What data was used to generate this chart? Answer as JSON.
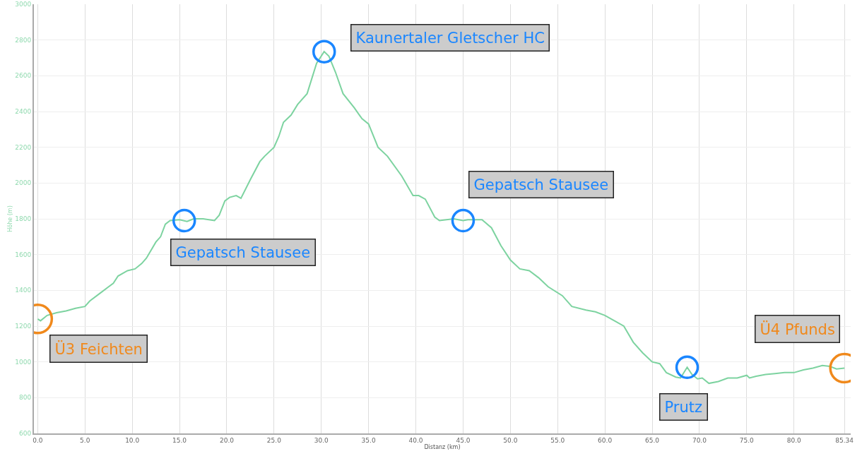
{
  "chart_data": {
    "type": "line",
    "xlabel": "Distanz (km)",
    "ylabel": "Höhe (m)",
    "x": [
      0,
      0.3,
      1,
      2,
      3,
      4,
      5,
      5.5,
      6.5,
      7.5,
      8,
      8.5,
      9.5,
      10.3,
      11,
      11.5,
      12.5,
      13,
      13.5,
      14,
      15,
      15.8,
      16.5,
      17.5,
      18.7,
      19.2,
      19.8,
      20.3,
      21,
      21.5,
      22.5,
      23.5,
      24,
      25,
      25.5,
      26,
      26.8,
      27.5,
      28.5,
      29.5,
      30.3,
      30.8,
      31.5,
      32.3,
      33.5,
      34.3,
      35,
      36,
      37,
      38.5,
      39.7,
      40.3,
      41,
      42,
      42.5,
      44,
      45,
      45.5,
      47,
      48,
      49,
      50,
      51,
      52,
      53,
      54,
      55.5,
      56.5,
      58,
      59,
      60,
      61,
      62,
      63,
      64,
      65,
      65.8,
      66.5,
      67.5,
      68,
      68.7,
      69.2,
      69.8,
      70.3,
      71,
      72,
      73,
      74,
      75,
      75.3,
      76,
      77,
      78,
      79,
      80,
      81,
      82,
      83,
      83.8,
      84.5,
      85.34
    ],
    "series": [
      {
        "color": "#7dd3a0",
        "values": [
          1240,
          1230,
          1260,
          1275,
          1285,
          1300,
          1310,
          1340,
          1380,
          1420,
          1440,
          1480,
          1510,
          1520,
          1550,
          1580,
          1670,
          1700,
          1770,
          1790,
          1795,
          1785,
          1800,
          1800,
          1790,
          1820,
          1900,
          1920,
          1930,
          1915,
          2020,
          2120,
          2150,
          2200,
          2260,
          2340,
          2380,
          2440,
          2500,
          2670,
          2735,
          2710,
          2620,
          2500,
          2420,
          2360,
          2330,
          2200,
          2150,
          2040,
          1930,
          1930,
          1910,
          1810,
          1790,
          1800,
          1790,
          1795,
          1795,
          1750,
          1650,
          1570,
          1520,
          1510,
          1470,
          1420,
          1370,
          1310,
          1290,
          1280,
          1260,
          1230,
          1200,
          1110,
          1050,
          1000,
          990,
          940,
          915,
          910,
          970,
          930,
          905,
          910,
          880,
          890,
          910,
          910,
          925,
          910,
          920,
          930,
          935,
          940,
          940,
          955,
          965,
          980,
          975,
          960,
          965
        ]
      }
    ],
    "xlim": [
      -0.4,
      86
    ],
    "xticks": [
      {
        "value": 0,
        "label": "0.0"
      },
      {
        "value": 5,
        "label": "5.0"
      },
      {
        "value": 10,
        "label": "10.0"
      },
      {
        "value": 15,
        "label": "15.0"
      },
      {
        "value": 20,
        "label": "20.0"
      },
      {
        "value": 25,
        "label": "25.0"
      },
      {
        "value": 30,
        "label": "30.0"
      },
      {
        "value": 35,
        "label": "35.0"
      },
      {
        "value": 40,
        "label": "40.0"
      },
      {
        "value": 45,
        "label": "45.0"
      },
      {
        "value": 50,
        "label": "50.0"
      },
      {
        "value": 55,
        "label": "55.0"
      },
      {
        "value": 60,
        "label": "60.0"
      },
      {
        "value": 65,
        "label": "65.0"
      },
      {
        "value": 70,
        "label": "70.0"
      },
      {
        "value": 75,
        "label": "75.0"
      },
      {
        "value": 80,
        "label": "80.0"
      },
      85.34
    ],
    "ylim": [
      600,
      3000
    ],
    "yticks": [
      600,
      800,
      1000,
      1200,
      1400,
      1600,
      1800,
      2000,
      2200,
      2400,
      2600,
      2800,
      3000
    ],
    "grid": true,
    "marker": "none",
    "line_style": "solid",
    "annotations": [
      {
        "text": "Ü3 Feichten",
        "x": 0,
        "y": 1240
      },
      {
        "text": "Gepatsch Stausee",
        "x": 15.5,
        "y": 1790
      },
      {
        "text": "Kaunertaler Gletscher HC",
        "x": 30.3,
        "y": 2735
      },
      {
        "text": "Gepatsch Stausee",
        "x": 45,
        "y": 1790
      },
      {
        "text": "Prutz",
        "x": 68.7,
        "y": 970
      },
      {
        "text": "Ü4 Pfunds",
        "x": 85.34,
        "y": 965
      }
    ]
  }
}
